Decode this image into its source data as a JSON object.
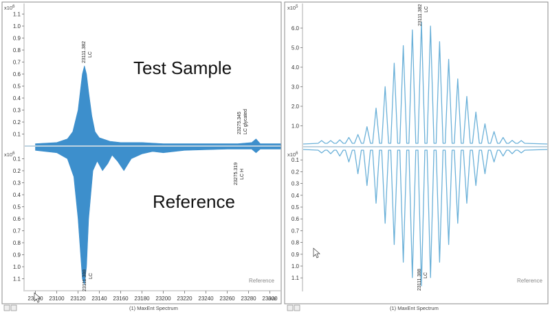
{
  "left_panel": {
    "top_exponent_label": "x10",
    "top_exponent_power": "6",
    "bottom_exponent_label": "x10",
    "bottom_exponent_power": "6",
    "test_label": "Test Sample",
    "reference_label": "Reference",
    "corner_label": "Reference",
    "spectrum_label": "(1) MaxEnt Spectrum",
    "x_unit": "m/z",
    "peak_annotations": {
      "top_main": [
        "23111.382",
        "LC"
      ],
      "top_glycated": [
        "23275.345",
        "LC glycated"
      ],
      "bottom_main": [
        "23111.388",
        "LC"
      ],
      "bottom_secondary": [
        "23275.319",
        "LC H"
      ]
    }
  },
  "right_panel": {
    "top_exponent_label": "x10",
    "top_exponent_power": "5",
    "bottom_exponent_label": "x10",
    "bottom_exponent_power": "6",
    "corner_label": "Reference",
    "spectrum_label": "(1) MaxEnt Spectrum",
    "peak_annotations": {
      "top_main": [
        "23111.382",
        "LC"
      ],
      "bottom_main": [
        "23111.388",
        "LC"
      ]
    }
  },
  "colors": {
    "fill": "#3d8fcc",
    "line": "#6ab0d8",
    "baseline": "#bcd2e0",
    "frame": "#888888"
  },
  "chart_data": [
    {
      "type": "area",
      "panel": "left-top",
      "series": [
        {
          "values": {
            "x": [
              23080,
              23100,
              23110,
              23115,
              23120,
              23124,
              23126,
              23128,
              23130,
              23133,
              23136,
              23140,
              23150,
              23160,
              23180,
              23200,
              23240,
              23270,
              23283,
              23287,
              23291,
              23310
            ],
            "y": [
              0.02,
              0.03,
              0.06,
              0.12,
              0.3,
              0.6,
              0.67,
              0.6,
              0.45,
              0.25,
              0.12,
              0.07,
              0.04,
              0.03,
              0.03,
              0.02,
              0.02,
              0.02,
              0.03,
              0.06,
              0.02,
              0.02
            ]
          }
        }
      ],
      "xlim": [
        23070,
        23310
      ],
      "xticks": [
        "23080",
        "23100",
        "23120",
        "23140",
        "23160",
        "23180",
        "23200",
        "23220",
        "23240",
        "23260",
        "23280",
        "23300"
      ],
      "ylim": [
        0,
        1.2
      ],
      "yticks": [
        "0.1",
        "0.2",
        "0.3",
        "0.4",
        "0.5",
        "0.6",
        "0.7",
        "0.8",
        "0.9",
        "1.0",
        "1.1"
      ]
    },
    {
      "type": "area",
      "panel": "left-bottom",
      "series": [
        {
          "values": {
            "x": [
              23080,
              23100,
              23110,
              23116,
              23120,
              23124,
              23126,
              23128,
              23130,
              23134,
              23138,
              23143,
              23148,
              23152,
              23157,
              23163,
              23170,
              23180,
              23190,
              23200,
              23220,
              23260,
              23283,
              23287,
              23291,
              23310
            ],
            "y": [
              0.03,
              0.05,
              0.1,
              0.25,
              0.6,
              1.1,
              1.15,
              1.0,
              0.6,
              0.2,
              0.12,
              0.2,
              0.14,
              0.07,
              0.12,
              0.2,
              0.1,
              0.06,
              0.04,
              0.05,
              0.03,
              0.02,
              0.02,
              0.05,
              0.02,
              0.02
            ]
          }
        }
      ],
      "xlim": [
        23070,
        23310
      ],
      "ylim": [
        0,
        1.2
      ],
      "yticks": [
        "0.1",
        "0.2",
        "0.3",
        "0.4",
        "0.5",
        "0.6",
        "0.7",
        "0.8",
        "0.9",
        "1.0",
        "1.1"
      ]
    },
    {
      "type": "line",
      "panel": "right-top",
      "series": [
        {
          "values": {
            "peak_index": [
              -11,
              -10,
              -9,
              -8,
              -7,
              -6,
              -5,
              -4,
              -3,
              -2,
              -1,
              0,
              1,
              2,
              3,
              4,
              5,
              6,
              7,
              8,
              9,
              10,
              11
            ],
            "y": [
              0.05,
              0.12,
              0.18,
              0.3,
              0.45,
              0.85,
              1.8,
              2.9,
              4.1,
              5.0,
              5.8,
              6.2,
              6.0,
              5.2,
              4.3,
              3.3,
              2.4,
              1.6,
              1.0,
              0.6,
              0.3,
              0.15,
              0.08
            ]
          }
        }
      ],
      "ylim": [
        0,
        6.5
      ],
      "yticks": [
        "1.0",
        "2.0",
        "3.0",
        "4.0",
        "5.0",
        "6.0"
      ]
    },
    {
      "type": "line",
      "panel": "right-bottom",
      "series": [
        {
          "values": {
            "peak_index": [
              -11,
              -10,
              -9,
              -8,
              -7,
              -6,
              -5,
              -4,
              -3,
              -2,
              -1,
              0,
              1,
              2,
              3,
              4,
              5,
              6,
              7,
              8,
              9,
              10,
              11
            ],
            "y": [
              0.02,
              0.03,
              0.05,
              0.1,
              0.2,
              0.3,
              0.45,
              0.62,
              0.8,
              0.95,
              1.08,
              1.15,
              1.08,
              0.95,
              0.8,
              0.62,
              0.45,
              0.3,
              0.2,
              0.1,
              0.05,
              0.03,
              0.02
            ]
          }
        }
      ],
      "ylim": [
        0,
        1.2
      ],
      "yticks": [
        "0.1",
        "0.2",
        "0.3",
        "0.4",
        "0.5",
        "0.6",
        "0.7",
        "0.8",
        "0.9",
        "1.0",
        "1.1"
      ]
    }
  ]
}
